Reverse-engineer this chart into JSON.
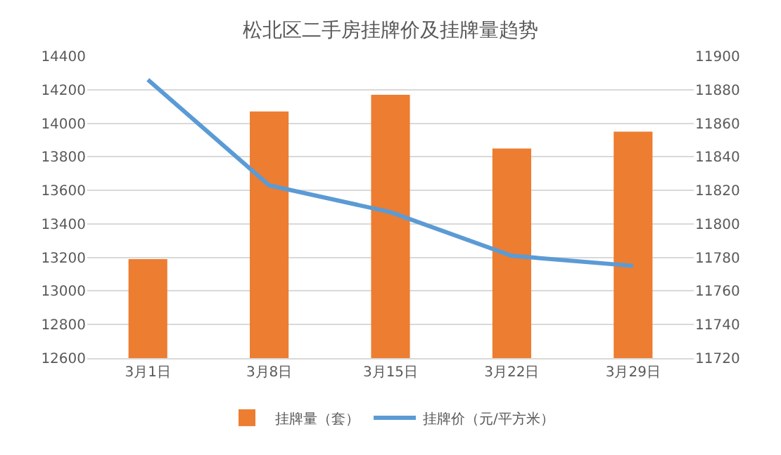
{
  "chart_data": {
    "type": "bar",
    "title": "松北区二手房挂牌价及挂牌量趋势",
    "categories": [
      "3月1日",
      "3月8日",
      "3月15日",
      "3月22日",
      "3月29日"
    ],
    "series": [
      {
        "name": "挂牌量（套）",
        "color": "#ed7d31",
        "values": [
          13190,
          14070,
          14170,
          13850,
          13950
        ]
      },
      {
        "name": "挂牌价（元/平方米）",
        "type": "line",
        "axis": "y2",
        "color": "#5b9bd5",
        "values": [
          11886,
          11823,
          11807,
          11781,
          11775
        ]
      }
    ],
    "ylim": [
      12600,
      14400
    ],
    "yticks": [
      12600,
      12800,
      13000,
      13200,
      13400,
      13600,
      13800,
      14000,
      14200,
      14400
    ],
    "y2lim": [
      11720,
      11900
    ],
    "y2ticks": [
      11720,
      11740,
      11760,
      11780,
      11800,
      11820,
      11840,
      11860,
      11880,
      11900
    ],
    "grid": "y",
    "legend": "bottom",
    "marker": "none",
    "line_style": "solid"
  }
}
